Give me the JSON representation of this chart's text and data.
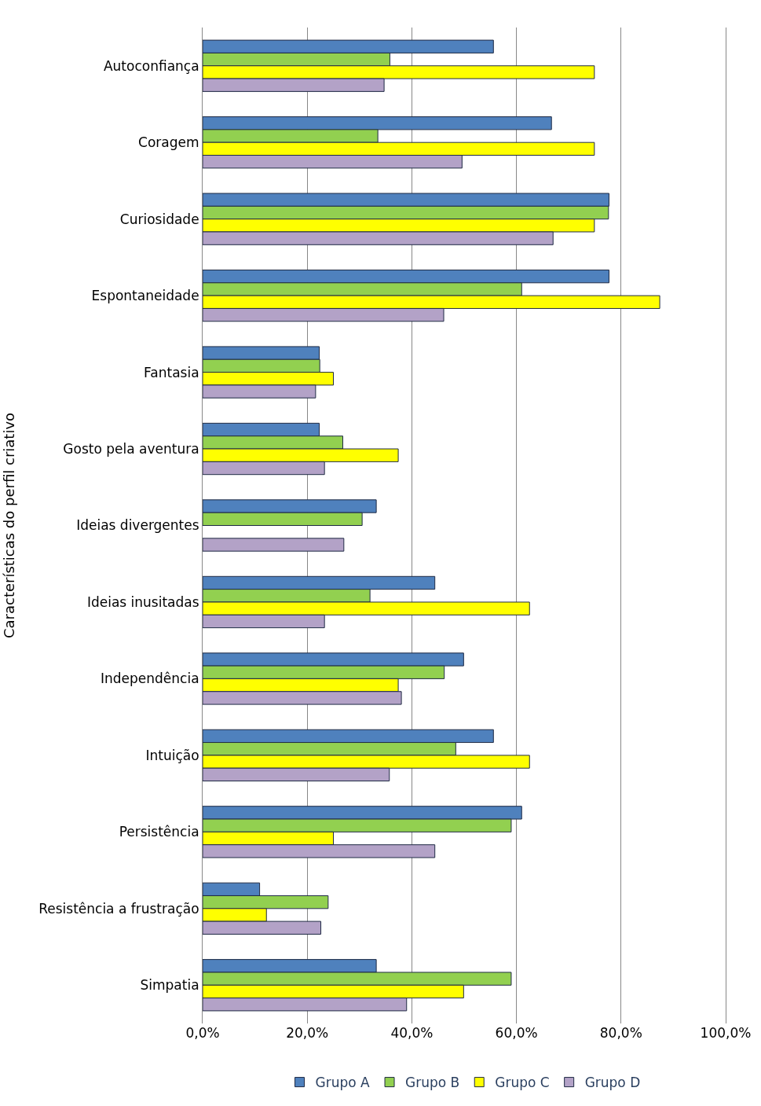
{
  "chart_data": {
    "type": "bar",
    "orientation": "horizontal",
    "ylabel": "Características do perfil criativo",
    "categories": [
      "Autoconfiança",
      "Coragem",
      "Curiosidade",
      "Espontaneidade",
      "Fantasia",
      "Gosto pela aventura",
      "Ideias divergentes",
      "Ideias inusitadas",
      "Independência",
      "Intuição",
      "Persistência",
      "Resistência a frustração",
      "Simpatia"
    ],
    "series": [
      {
        "name": "Grupo A",
        "color": "#4f81bd",
        "values": [
          55.6,
          66.7,
          77.7,
          77.7,
          22.3,
          22.3,
          33.2,
          44.4,
          49.9,
          55.6,
          61.0,
          10.9,
          33.2
        ]
      },
      {
        "name": "Grupo B",
        "color": "#92d050",
        "values": [
          35.8,
          33.5,
          77.6,
          61.0,
          22.4,
          26.8,
          30.5,
          32.0,
          46.2,
          48.4,
          59.0,
          24.0,
          59.0
        ]
      },
      {
        "name": "Grupo C",
        "color": "#ffff00",
        "values": [
          74.9,
          74.9,
          74.9,
          87.4,
          25.0,
          37.4,
          null,
          62.5,
          37.4,
          62.5,
          25.0,
          12.2,
          49.9
        ]
      },
      {
        "name": "Grupo D",
        "color": "#b3a2c7",
        "values": [
          34.7,
          49.6,
          67.0,
          46.1,
          21.6,
          23.3,
          27.0,
          23.3,
          38.0,
          35.7,
          44.4,
          22.6,
          39.0
        ]
      }
    ],
    "xlim": [
      0,
      100
    ],
    "xticks": [
      {
        "value": 0,
        "label": "0,0%"
      },
      {
        "value": 20,
        "label": "20,0%"
      },
      {
        "value": 40,
        "label": "40,0%"
      },
      {
        "value": 60,
        "label": "60,0%"
      },
      {
        "value": 80,
        "label": "80,0%"
      },
      {
        "value": 100,
        "label": "100,0%"
      }
    ],
    "grid": "x",
    "legend": "bottom"
  }
}
